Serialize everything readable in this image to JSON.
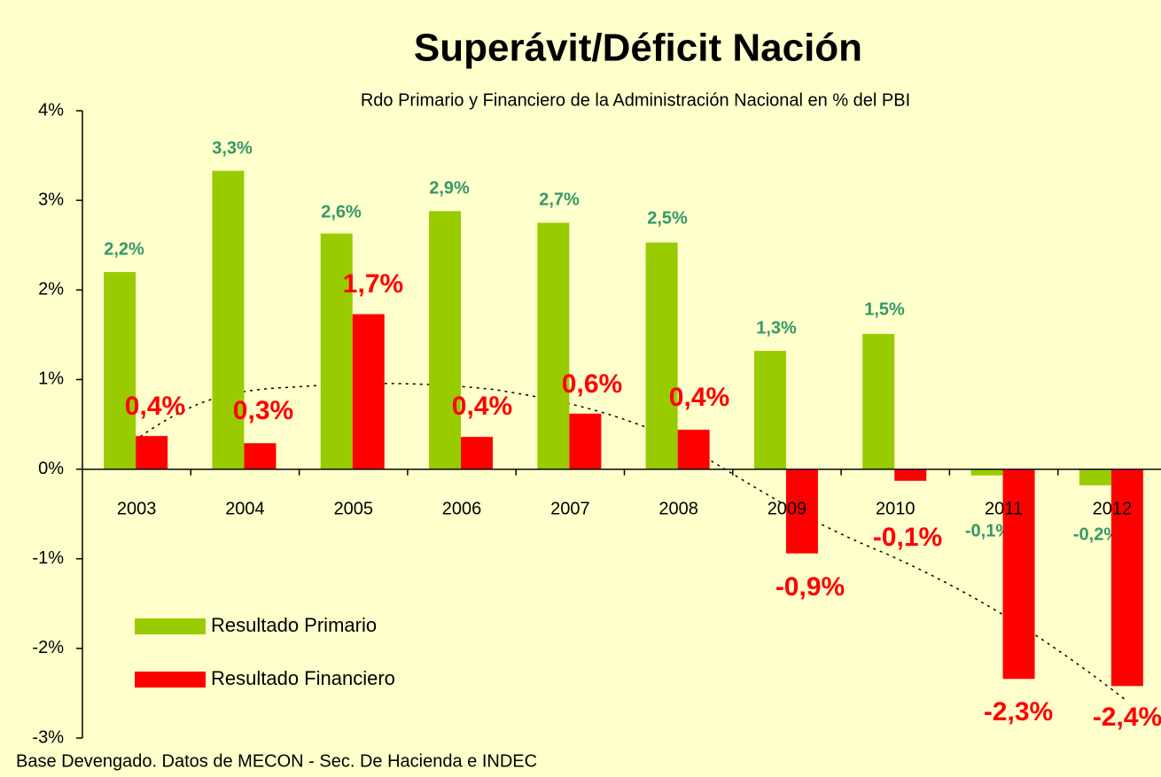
{
  "chart_data": {
    "type": "bar",
    "title": "Superávit/Déficit Nación",
    "subtitle": "Rdo Primario y Financiero de la Administración Nacional en % del PBI",
    "footnote": "Base Devengado. Datos de MECON - Sec. De Hacienda e INDEC",
    "categories": [
      "2003",
      "2004",
      "2005",
      "2006",
      "2007",
      "2008",
      "2009",
      "2010",
      "2011",
      "2012"
    ],
    "series": [
      {
        "name": "Resultado Primario",
        "color": "#99cc00",
        "values": [
          2.2,
          3.33,
          2.63,
          2.88,
          2.75,
          2.53,
          1.32,
          1.51,
          -0.07,
          -0.18
        ],
        "value_labels": [
          "2,2%",
          "3,3%",
          "2,6%",
          "2,9%",
          "2,7%",
          "2,5%",
          "1,3%",
          "1,5%",
          "-0,1%",
          "-0,2%"
        ]
      },
      {
        "name": "Resultado Financiero",
        "color": "#ff0000",
        "values": [
          0.37,
          0.29,
          1.73,
          0.36,
          0.62,
          0.44,
          -0.94,
          -0.13,
          -2.34,
          -2.42
        ],
        "value_labels": [
          "0,4%",
          "0,3%",
          "1,7%",
          "0,4%",
          "0,6%",
          "0,4%",
          "-0,9%",
          "-0,1%",
          "-2,3%",
          "-2,4%"
        ]
      }
    ],
    "ylim": [
      -3,
      4
    ],
    "yticks": [
      {
        "value": -3,
        "label": "-3%"
      },
      {
        "value": -2,
        "label": "-2%"
      },
      {
        "value": -1,
        "label": "-1%"
      },
      {
        "value": 0,
        "label": "0%"
      },
      {
        "value": 1,
        "label": "1%"
      },
      {
        "value": 2,
        "label": "2%"
      },
      {
        "value": 3,
        "label": "3%"
      },
      {
        "value": 4,
        "label": "4%"
      }
    ],
    "legend": "lower left"
  }
}
